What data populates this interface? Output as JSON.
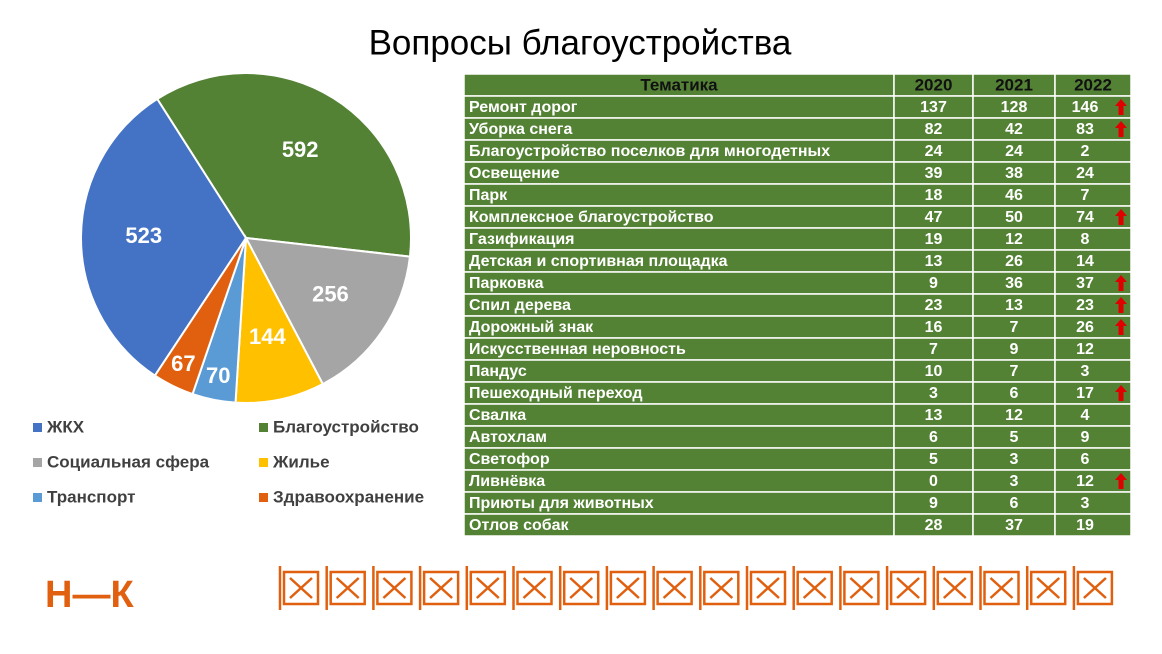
{
  "title": "Вопросы благоустройства",
  "chart_data": {
    "type": "pie",
    "categories": [
      "ЖКХ",
      "Благоустройство",
      "Социальная сфера",
      "Жилье",
      "Транспорт",
      "Здравоохранение"
    ],
    "values": [
      523,
      592,
      256,
      144,
      70,
      67
    ],
    "colors": [
      "#4472c4",
      "#548235",
      "#a5a5a5",
      "#ffc000",
      "#5b9bd5",
      "#e0600f"
    ]
  },
  "table": {
    "header": [
      "Тематика",
      "2020",
      "2021",
      "2022"
    ],
    "rows": [
      {
        "cells": [
          "Ремонт дорог",
          137,
          128,
          146
        ],
        "arrow": true
      },
      {
        "cells": [
          "Уборка снега",
          82,
          42,
          83
        ],
        "arrow": true
      },
      {
        "cells": [
          "Благоустройство поселков для многодетных",
          24,
          24,
          2
        ],
        "arrow": false
      },
      {
        "cells": [
          "Освещение",
          39,
          38,
          24
        ],
        "arrow": false
      },
      {
        "cells": [
          "Парк",
          18,
          46,
          7
        ],
        "arrow": false
      },
      {
        "cells": [
          "Комплексное благоустройство",
          47,
          50,
          74
        ],
        "arrow": true
      },
      {
        "cells": [
          "Газификация",
          19,
          12,
          8
        ],
        "arrow": false
      },
      {
        "cells": [
          "Детская и спортивная площадка",
          13,
          26,
          14
        ],
        "arrow": false
      },
      {
        "cells": [
          "Парковка",
          9,
          36,
          37
        ],
        "arrow": true
      },
      {
        "cells": [
          "Спил дерева",
          23,
          13,
          23
        ],
        "arrow": true
      },
      {
        "cells": [
          "Дорожный знак",
          16,
          7,
          26
        ],
        "arrow": true
      },
      {
        "cells": [
          "Искусственная неровность",
          7,
          9,
          12
        ],
        "arrow": false
      },
      {
        "cells": [
          "Пандус",
          10,
          7,
          3
        ],
        "arrow": false
      },
      {
        "cells": [
          "Пешеходный переход",
          3,
          6,
          17
        ],
        "arrow": true
      },
      {
        "cells": [
          "Свалка",
          13,
          12,
          4
        ],
        "arrow": false
      },
      {
        "cells": [
          "Автохлам",
          6,
          5,
          9
        ],
        "arrow": false
      },
      {
        "cells": [
          "Светофор",
          5,
          3,
          6
        ],
        "arrow": false
      },
      {
        "cells": [
          "Ливнёвка",
          0,
          3,
          12
        ],
        "arrow": true
      },
      {
        "cells": [
          "Приюты для животных",
          9,
          6,
          3
        ],
        "arrow": false
      },
      {
        "cells": [
          "Отлов собак",
          28,
          37,
          19
        ],
        "arrow": false
      }
    ]
  },
  "logo": "Н—К"
}
